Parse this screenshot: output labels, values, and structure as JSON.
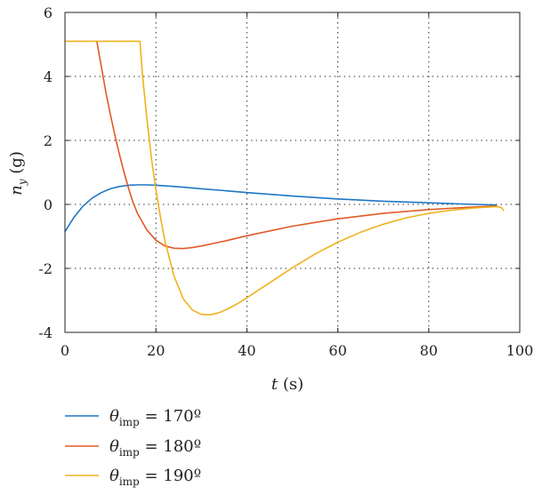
{
  "chart_data": {
    "type": "line",
    "xlabel": {
      "var": "t",
      "unit": " (s)"
    },
    "ylabel": {
      "var": "n",
      "sub": "y",
      "unit": " (g)"
    },
    "xlim": [
      0,
      100
    ],
    "ylim": [
      -4,
      6
    ],
    "xticks": [
      0,
      20,
      40,
      60,
      80,
      100
    ],
    "yticks": [
      -4,
      -2,
      0,
      2,
      4,
      6
    ],
    "grid": true,
    "legend_position": "below",
    "series": [
      {
        "name": "θimp = 170º",
        "legend": {
          "sym": "θ",
          "sub": "imp",
          "rest": " = 170º"
        },
        "color": "#1f77c4",
        "x": [
          0,
          2,
          4,
          6,
          8,
          10,
          12,
          14,
          16,
          18,
          20,
          25,
          30,
          35,
          40,
          50,
          60,
          70,
          80,
          90,
          95
        ],
        "y": [
          -0.85,
          -0.4,
          -0.05,
          0.2,
          0.37,
          0.49,
          0.56,
          0.6,
          0.61,
          0.61,
          0.6,
          0.55,
          0.49,
          0.43,
          0.37,
          0.26,
          0.17,
          0.1,
          0.05,
          0.0,
          -0.02
        ]
      },
      {
        "name": "θimp = 180º",
        "legend": {
          "sym": "θ",
          "sub": "imp",
          "rest": " = 180º"
        },
        "color": "#e05a28",
        "x": [
          7,
          8,
          9,
          10,
          11,
          12,
          13,
          14,
          15,
          16,
          18,
          20,
          22,
          24,
          26,
          28,
          30,
          35,
          40,
          50,
          60,
          70,
          80,
          90,
          95
        ],
        "y": [
          5.1,
          4.3,
          3.5,
          2.8,
          2.15,
          1.55,
          1.0,
          0.5,
          0.05,
          -0.3,
          -0.8,
          -1.12,
          -1.3,
          -1.37,
          -1.38,
          -1.35,
          -1.3,
          -1.15,
          -0.98,
          -0.68,
          -0.45,
          -0.28,
          -0.16,
          -0.08,
          -0.05
        ]
      },
      {
        "name": "θimp = 190º",
        "legend": {
          "sym": "θ",
          "sub": "imp",
          "rest": " = 190º"
        },
        "color": "#f0b21c",
        "x": [
          0,
          4,
          8,
          12,
          16.5,
          17,
          18,
          19,
          20,
          21,
          22,
          24,
          26,
          28,
          30,
          32,
          34,
          36,
          38,
          40,
          45,
          50,
          55,
          60,
          65,
          70,
          75,
          80,
          85,
          90,
          95,
          96,
          96.5
        ],
        "y": [
          5.1,
          5.1,
          5.1,
          5.1,
          5.1,
          4.1,
          2.7,
          1.45,
          0.45,
          -0.4,
          -1.15,
          -2.25,
          -2.95,
          -3.3,
          -3.44,
          -3.45,
          -3.38,
          -3.25,
          -3.1,
          -2.92,
          -2.45,
          -1.98,
          -1.55,
          -1.18,
          -0.87,
          -0.62,
          -0.42,
          -0.28,
          -0.18,
          -0.11,
          -0.07,
          -0.1,
          -0.2
        ]
      }
    ]
  }
}
